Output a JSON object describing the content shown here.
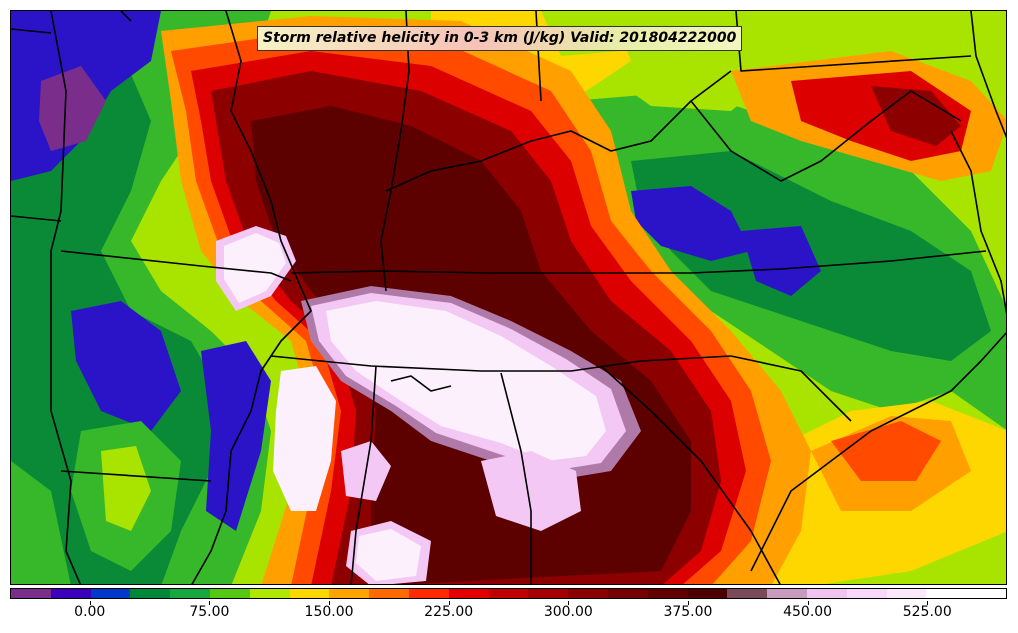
{
  "title": "Storm relative helicity in 0-3 km (J/kg) Valid: 201804222000",
  "colorbar": {
    "colors": [
      "#7b2d8b",
      "#3c00bd",
      "#0038c8",
      "#00883a",
      "#16a83c",
      "#55c814",
      "#aee800",
      "#ffd700",
      "#ffa300",
      "#ff6a00",
      "#ff2a00",
      "#e40000",
      "#c00000",
      "#a40000",
      "#8a0000",
      "#760000",
      "#620000",
      "#4e0000",
      "#7a4a5a",
      "#c89abe",
      "#f0c4f0",
      "#f8d8f8",
      "#fbe8fb",
      "#ffffff",
      "#ffffff"
    ],
    "tick_labels": [
      "0.00",
      "75.00",
      "150.00",
      "225.00",
      "300.00",
      "375.00",
      "450.00",
      "525.00"
    ],
    "tick_values": [
      0,
      75,
      150,
      225,
      300,
      375,
      450,
      525
    ],
    "value_min": -50,
    "value_max": 575,
    "units": "J/kg"
  },
  "map": {
    "palette": {
      "purple": "#7b2d8b",
      "blue": "#2b14c8",
      "dark_green": "#0a8a36",
      "green": "#37b82a",
      "lime": "#a8e400",
      "yellow": "#ffd700",
      "orange": "#ffa000",
      "red_orange": "#ff4a00",
      "red": "#dc0000",
      "dark_red": "#8c0000",
      "maroon": "#5c0000",
      "mauve": "#b07aa8",
      "pink": "#f4c8f4",
      "white_pink": "#fbf0fb"
    },
    "boundary_color": "#000000"
  }
}
